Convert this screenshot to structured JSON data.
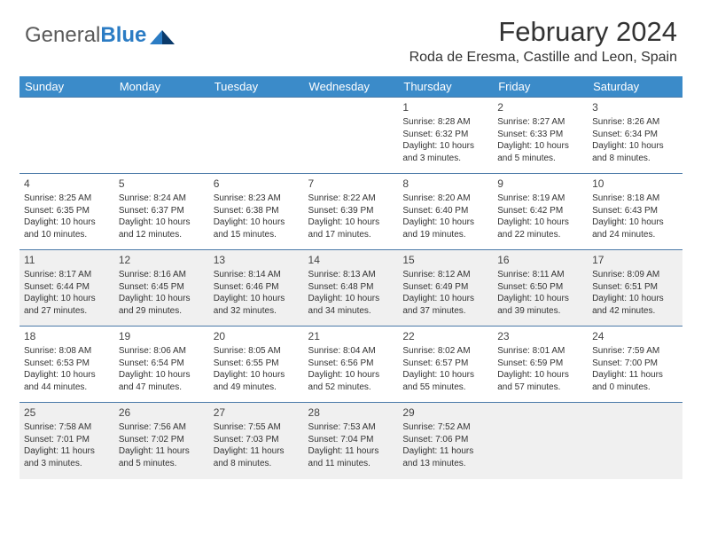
{
  "brand": {
    "name1": "General",
    "name2": "Blue"
  },
  "title": "February 2024",
  "location": "Roda de Eresma, Castille and Leon, Spain",
  "style": {
    "header_bg": "#3b8bc9",
    "header_text": "#ffffff",
    "row_bg": "#ffffff",
    "row_alt_bg": "#f0f0f0",
    "border_color": "#4a7aa8",
    "body_text": "#333333",
    "logo_gray": "#5a5a5a",
    "logo_blue": "#2b7cc4",
    "title_fontsize": 31,
    "location_fontsize": 16,
    "daynum_fontsize": 12,
    "cell_fontsize": 10
  },
  "weekdays": [
    "Sunday",
    "Monday",
    "Tuesday",
    "Wednesday",
    "Thursday",
    "Friday",
    "Saturday"
  ],
  "weeks": [
    [
      null,
      null,
      null,
      null,
      {
        "n": "1",
        "rise": "Sunrise: 8:28 AM",
        "set": "Sunset: 6:32 PM",
        "dl": "Daylight: 10 hours and 3 minutes."
      },
      {
        "n": "2",
        "rise": "Sunrise: 8:27 AM",
        "set": "Sunset: 6:33 PM",
        "dl": "Daylight: 10 hours and 5 minutes."
      },
      {
        "n": "3",
        "rise": "Sunrise: 8:26 AM",
        "set": "Sunset: 6:34 PM",
        "dl": "Daylight: 10 hours and 8 minutes."
      }
    ],
    [
      {
        "n": "4",
        "rise": "Sunrise: 8:25 AM",
        "set": "Sunset: 6:35 PM",
        "dl": "Daylight: 10 hours and 10 minutes."
      },
      {
        "n": "5",
        "rise": "Sunrise: 8:24 AM",
        "set": "Sunset: 6:37 PM",
        "dl": "Daylight: 10 hours and 12 minutes."
      },
      {
        "n": "6",
        "rise": "Sunrise: 8:23 AM",
        "set": "Sunset: 6:38 PM",
        "dl": "Daylight: 10 hours and 15 minutes."
      },
      {
        "n": "7",
        "rise": "Sunrise: 8:22 AM",
        "set": "Sunset: 6:39 PM",
        "dl": "Daylight: 10 hours and 17 minutes."
      },
      {
        "n": "8",
        "rise": "Sunrise: 8:20 AM",
        "set": "Sunset: 6:40 PM",
        "dl": "Daylight: 10 hours and 19 minutes."
      },
      {
        "n": "9",
        "rise": "Sunrise: 8:19 AM",
        "set": "Sunset: 6:42 PM",
        "dl": "Daylight: 10 hours and 22 minutes."
      },
      {
        "n": "10",
        "rise": "Sunrise: 8:18 AM",
        "set": "Sunset: 6:43 PM",
        "dl": "Daylight: 10 hours and 24 minutes."
      }
    ],
    [
      {
        "n": "11",
        "rise": "Sunrise: 8:17 AM",
        "set": "Sunset: 6:44 PM",
        "dl": "Daylight: 10 hours and 27 minutes."
      },
      {
        "n": "12",
        "rise": "Sunrise: 8:16 AM",
        "set": "Sunset: 6:45 PM",
        "dl": "Daylight: 10 hours and 29 minutes."
      },
      {
        "n": "13",
        "rise": "Sunrise: 8:14 AM",
        "set": "Sunset: 6:46 PM",
        "dl": "Daylight: 10 hours and 32 minutes."
      },
      {
        "n": "14",
        "rise": "Sunrise: 8:13 AM",
        "set": "Sunset: 6:48 PM",
        "dl": "Daylight: 10 hours and 34 minutes."
      },
      {
        "n": "15",
        "rise": "Sunrise: 8:12 AM",
        "set": "Sunset: 6:49 PM",
        "dl": "Daylight: 10 hours and 37 minutes."
      },
      {
        "n": "16",
        "rise": "Sunrise: 8:11 AM",
        "set": "Sunset: 6:50 PM",
        "dl": "Daylight: 10 hours and 39 minutes."
      },
      {
        "n": "17",
        "rise": "Sunrise: 8:09 AM",
        "set": "Sunset: 6:51 PM",
        "dl": "Daylight: 10 hours and 42 minutes."
      }
    ],
    [
      {
        "n": "18",
        "rise": "Sunrise: 8:08 AM",
        "set": "Sunset: 6:53 PM",
        "dl": "Daylight: 10 hours and 44 minutes."
      },
      {
        "n": "19",
        "rise": "Sunrise: 8:06 AM",
        "set": "Sunset: 6:54 PM",
        "dl": "Daylight: 10 hours and 47 minutes."
      },
      {
        "n": "20",
        "rise": "Sunrise: 8:05 AM",
        "set": "Sunset: 6:55 PM",
        "dl": "Daylight: 10 hours and 49 minutes."
      },
      {
        "n": "21",
        "rise": "Sunrise: 8:04 AM",
        "set": "Sunset: 6:56 PM",
        "dl": "Daylight: 10 hours and 52 minutes."
      },
      {
        "n": "22",
        "rise": "Sunrise: 8:02 AM",
        "set": "Sunset: 6:57 PM",
        "dl": "Daylight: 10 hours and 55 minutes."
      },
      {
        "n": "23",
        "rise": "Sunrise: 8:01 AM",
        "set": "Sunset: 6:59 PM",
        "dl": "Daylight: 10 hours and 57 minutes."
      },
      {
        "n": "24",
        "rise": "Sunrise: 7:59 AM",
        "set": "Sunset: 7:00 PM",
        "dl": "Daylight: 11 hours and 0 minutes."
      }
    ],
    [
      {
        "n": "25",
        "rise": "Sunrise: 7:58 AM",
        "set": "Sunset: 7:01 PM",
        "dl": "Daylight: 11 hours and 3 minutes."
      },
      {
        "n": "26",
        "rise": "Sunrise: 7:56 AM",
        "set": "Sunset: 7:02 PM",
        "dl": "Daylight: 11 hours and 5 minutes."
      },
      {
        "n": "27",
        "rise": "Sunrise: 7:55 AM",
        "set": "Sunset: 7:03 PM",
        "dl": "Daylight: 11 hours and 8 minutes."
      },
      {
        "n": "28",
        "rise": "Sunrise: 7:53 AM",
        "set": "Sunset: 7:04 PM",
        "dl": "Daylight: 11 hours and 11 minutes."
      },
      {
        "n": "29",
        "rise": "Sunrise: 7:52 AM",
        "set": "Sunset: 7:06 PM",
        "dl": "Daylight: 11 hours and 13 minutes."
      },
      null,
      null
    ]
  ]
}
